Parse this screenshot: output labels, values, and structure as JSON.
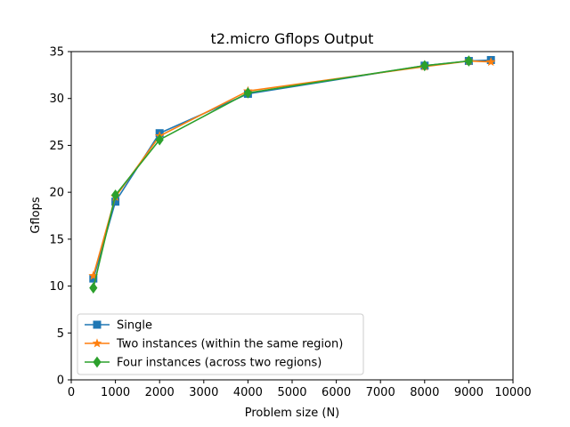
{
  "chart_data": {
    "type": "line",
    "title": "t2.micro Gflops Output",
    "xlabel": "Problem size (N)",
    "ylabel": "Gflops",
    "xlim": [
      0,
      10000
    ],
    "ylim": [
      0,
      35
    ],
    "xticks": [
      0,
      1000,
      2000,
      3000,
      4000,
      5000,
      6000,
      7000,
      8000,
      9000,
      10000
    ],
    "yticks": [
      0,
      5,
      10,
      15,
      20,
      25,
      30,
      35
    ],
    "legend_position": "lower-left",
    "grid": false,
    "series": [
      {
        "name": "Single",
        "color": "#1f77b4",
        "marker": "square",
        "x": [
          500,
          1000,
          2000,
          4000,
          8000,
          9000,
          9500
        ],
        "y": [
          10.8,
          19.0,
          26.3,
          30.5,
          33.5,
          34.0,
          34.1
        ]
      },
      {
        "name": "Two instances (within the same region)",
        "color": "#ff7f0e",
        "marker": "star",
        "x": [
          500,
          1000,
          2000,
          4000,
          8000,
          9000,
          9500
        ],
        "y": [
          11.1,
          19.5,
          26.0,
          30.8,
          33.4,
          34.0,
          33.9
        ]
      },
      {
        "name": "Four instances (across two regions)",
        "color": "#2ca02c",
        "marker": "diamond",
        "x": [
          500,
          1000,
          2000,
          4000,
          8000,
          9000
        ],
        "y": [
          9.8,
          19.7,
          25.6,
          30.6,
          33.5,
          34.0
        ]
      }
    ]
  }
}
